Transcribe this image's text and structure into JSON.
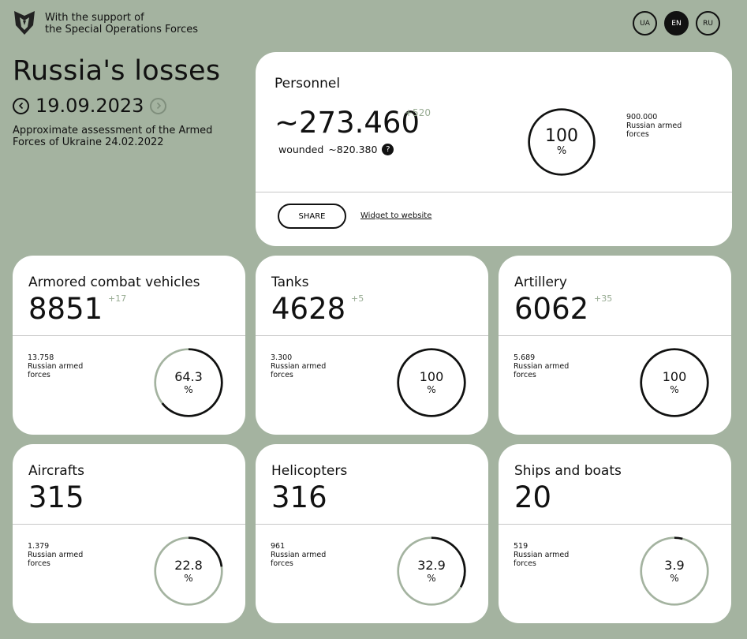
{
  "header": {
    "support_line1": "With the support of",
    "support_line2": "the Special Operations Forces",
    "languages": [
      "UA",
      "EN",
      "RU"
    ],
    "active_language": "EN"
  },
  "intro": {
    "title": "Russia's losses",
    "date": "19.09.2023",
    "description": "Approximate assessment of the Armed Forces of Ukraine 24.02.2022"
  },
  "personnel": {
    "label": "Personnel",
    "value": "~273.460",
    "delta": "+520",
    "wounded_label": "wounded",
    "wounded_value": "~820.380",
    "help_icon": "?",
    "percent": "100",
    "percent_sign": "%",
    "total": "900.000",
    "total_label_1": "Russian armed",
    "total_label_2": "forces",
    "share_label": "SHARE",
    "widget_label": "Widget to website"
  },
  "cards": [
    {
      "label": "Armored combat vehicles",
      "value": "8851",
      "delta": "+17",
      "total": "13.758",
      "total_label_1": "Russian armed",
      "total_label_2": "forces",
      "percent": "64.3",
      "percent_sign": "%",
      "fraction": 0.643
    },
    {
      "label": "Tanks",
      "value": "4628",
      "delta": "+5",
      "total": "3.300",
      "total_label_1": "Russian armed",
      "total_label_2": "forces",
      "percent": "100",
      "percent_sign": "%",
      "fraction": 1.0
    },
    {
      "label": "Artillery",
      "value": "6062",
      "delta": "+35",
      "total": "5.689",
      "total_label_1": "Russian armed",
      "total_label_2": "forces",
      "percent": "100",
      "percent_sign": "%",
      "fraction": 1.0
    },
    {
      "label": "Aircrafts",
      "value": "315",
      "delta": "",
      "total": "1.379",
      "total_label_1": "Russian armed",
      "total_label_2": "forces",
      "percent": "22.8",
      "percent_sign": "%",
      "fraction": 0.228
    },
    {
      "label": "Helicopters",
      "value": "316",
      "delta": "",
      "total": "961",
      "total_label_1": "Russian armed",
      "total_label_2": "forces",
      "percent": "32.9",
      "percent_sign": "%",
      "fraction": 0.329
    },
    {
      "label": "Ships and boats",
      "value": "20",
      "delta": "",
      "total": "519",
      "total_label_1": "Russian armed",
      "total_label_2": "forces",
      "percent": "3.9",
      "percent_sign": "%",
      "fraction": 0.039
    }
  ],
  "colors": {
    "background": "#a4b3a0",
    "card": "#ffffff",
    "ring_track": "#a4b3a0",
    "ring_fill": "#111111",
    "delta": "#97ab92"
  },
  "icons": [
    "sof-logo-icon",
    "chevron-left-icon",
    "chevron-right-icon",
    "question-icon"
  ]
}
